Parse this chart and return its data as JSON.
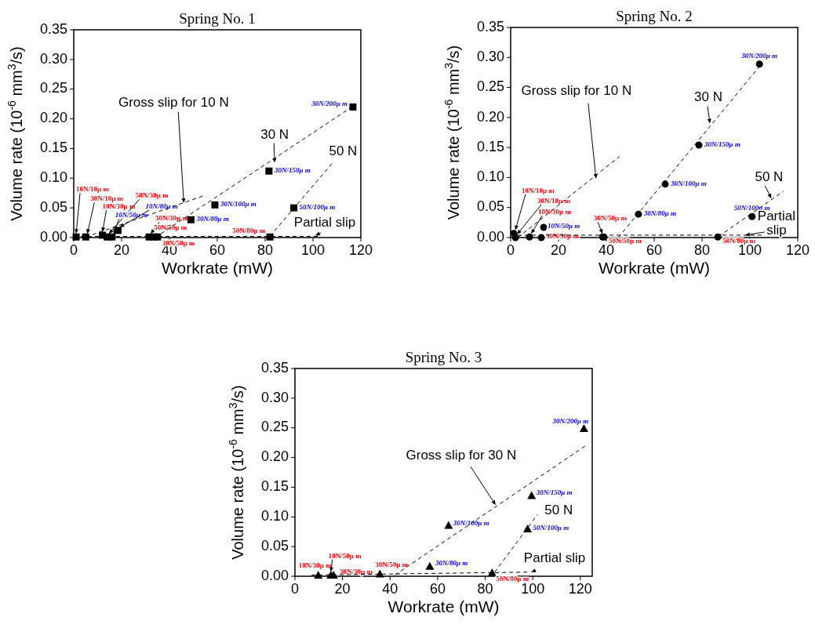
{
  "chart_data": [
    {
      "type": "scatter",
      "title": "Spring No. 1",
      "xlabel": "Workrate (mW)",
      "ylabel": "Volume rate (10$^{-6}$ mm$^{3}$/s)",
      "xlim": [
        0,
        120
      ],
      "xticks": [
        0,
        20,
        40,
        60,
        80,
        100,
        120
      ],
      "ylim": [
        0,
        0.35
      ],
      "yticks": [
        {
          "value": 0,
          "label": "0.00"
        },
        0.05,
        {
          "value": 0.1,
          "label": "0.10"
        },
        0.15,
        {
          "value": 0.2,
          "label": "0.20"
        },
        0.25,
        {
          "value": 0.3,
          "label": "0.30"
        },
        0.35
      ],
      "series": [
        {
          "marker": "square",
          "color": "#000000",
          "x": [
            1,
            5,
            12,
            14,
            31.5,
            33.5,
            35,
            82
          ],
          "values": [
            0.001,
            0.001,
            0.004,
            0.001,
            0.001,
            0.001,
            0.001,
            0.001
          ],
          "value_labels": [
            "10N/10μ m",
            "30N/10μ m",
            "10N/30μ m",
            "50N/30μ m",
            "30N/30μ m",
            "50N/50μ m",
            "30N/50μ m",
            "50N/80μ m"
          ]
        },
        {
          "marker": "square",
          "color": "#000000",
          "x": [
            16,
            18.5,
            49,
            59,
            81.6,
            116.7,
            92
          ],
          "values": [
            0.001,
            0.012,
            0.03,
            0.055,
            0.112,
            0.22,
            0.05
          ],
          "value_labels": [
            "10N/50μ m",
            "10N/80μ m",
            "30N/80μ m",
            "30N/100μ m",
            "30N/150μ m",
            "30N/200μ m",
            "50N/100μ m"
          ]
        },
        {
          "type": "line",
          "marker": "none",
          "line_style": "dashed",
          "color": "#000000",
          "x": [
            5,
            54
          ],
          "values": [
            0.001,
            0.07
          ]
        },
        {
          "type": "line",
          "marker": "none",
          "line_style": "dashed",
          "color": "#000000",
          "x": [
            34,
            117
          ],
          "values": [
            0,
            0.222
          ]
        },
        {
          "type": "line",
          "marker": "none",
          "line_style": "dashed",
          "color": "#000000",
          "x": [
            82,
            108
          ],
          "values": [
            0.002,
            0.125
          ]
        },
        {
          "type": "line",
          "marker": "none",
          "line_style": "dashed",
          "color": "#000000",
          "x": [
            0,
            102
          ],
          "values": [
            0.002,
            0.002
          ]
        }
      ],
      "annotations": [
        {
          "text": "Gross slip for 10 N",
          "x": 46,
          "y": 0.058
        },
        {
          "text": "30 N",
          "x": 84,
          "y": 0.126
        },
        {
          "text": "50 N",
          "x": 108,
          "y": 0.125
        },
        {
          "text": "Partial slip",
          "x": 101,
          "y": 0.003
        }
      ]
    },
    {
      "type": "scatter",
      "title": "Spring No. 2",
      "xlabel": "Workrate (mW)",
      "ylabel": "Volume rate (10$^{-6}$ mm$^{3}$/s)",
      "xlim": [
        0,
        120
      ],
      "xticks": [
        0,
        20,
        40,
        60,
        80,
        100,
        120
      ],
      "ylim": [
        0,
        0.35
      ],
      "yticks": [
        {
          "value": 0,
          "label": "0.00"
        },
        0.05,
        {
          "value": 0.1,
          "label": "0.10"
        },
        0.15,
        {
          "value": 0.2,
          "label": "0.20"
        },
        0.25,
        {
          "value": 0.3,
          "label": "0.30"
        },
        0.35
      ],
      "series": [
        {
          "marker": "circle",
          "color": "#000000",
          "x": [
            1.3,
            2,
            7.9,
            12.8,
            38.4,
            39,
            86.6
          ],
          "values": [
            0.007,
            0,
            0.001,
            0,
            0.001,
            0.001,
            0.001
          ],
          "value_labels": [
            "10N/10μ m",
            "30N/10μ m",
            "10N/30μ m",
            "30N/30μ m",
            "30N/50μ m",
            "50N/50μ m",
            "50N/80μ m"
          ]
        },
        {
          "marker": "circle",
          "color": "#000000",
          "x": [
            13.8,
            53.4,
            64.6,
            78.7,
            104,
            100.9
          ],
          "values": [
            0.017,
            0.039,
            0.089,
            0.154,
            0.289,
            0.035
          ],
          "value_labels": [
            "10N/50μ m",
            "30N/80μ m",
            "30N/100μ m",
            "30N/150μ m",
            "30N/200μ m",
            "50N/100μ m"
          ]
        },
        {
          "type": "line",
          "marker": "none",
          "line_style": "dashed",
          "color": "#000000",
          "x": [
            3,
            45.5
          ],
          "values": [
            0,
            0.135
          ]
        },
        {
          "type": "line",
          "marker": "none",
          "line_style": "dashed",
          "color": "#000000",
          "x": [
            45,
            104
          ],
          "values": [
            0,
            0.285
          ]
        },
        {
          "type": "line",
          "marker": "none",
          "line_style": "dashed",
          "color": "#000000",
          "x": [
            87,
            114
          ],
          "values": [
            0.002,
            0.077
          ]
        },
        {
          "type": "line",
          "marker": "none",
          "line_style": "dashed",
          "color": "#000000",
          "x": [
            0,
            106
          ],
          "values": [
            0.004,
            0.004
          ]
        }
      ],
      "annotations": [
        {
          "text": "Gross slip for 10 N",
          "x": 35.7,
          "y": 0.098
        },
        {
          "text": "30 N",
          "x": 83.3,
          "y": 0.19
        },
        {
          "text": "50 N",
          "x": 109,
          "y": 0.065
        },
        {
          "text": "Partial slip",
          "x": 98,
          "y": 0.004
        }
      ]
    },
    {
      "type": "scatter",
      "title": "Spring No. 3",
      "xlabel": "Workrate (mW)",
      "ylabel": "Volume rate (10$^{-6}$ mm$^{3}$/s)",
      "xlim": [
        0,
        125
      ],
      "xticks": [
        0,
        20,
        40,
        60,
        80,
        100,
        120
      ],
      "ylim": [
        0,
        0.35
      ],
      "yticks": [
        {
          "value": 0,
          "label": "0.00"
        },
        0.05,
        {
          "value": 0.1,
          "label": "0.10"
        },
        0.15,
        {
          "value": 0.2,
          "label": "0.20"
        },
        0.25,
        {
          "value": 0.3,
          "label": "0.30"
        },
        0.35
      ],
      "series": [
        {
          "marker": "triangle",
          "color": "#000000",
          "x": [
            9.8,
            15.1,
            16.2,
            35.7,
            82.9
          ],
          "values": [
            0.002,
            0.002,
            0.002,
            0.004,
            0.006
          ],
          "value_labels": [
            "10N/30μ m",
            "10N/50μ m",
            "30N/30μ m",
            "30N/50μ m",
            "50N/80μ m"
          ]
        },
        {
          "marker": "triangle",
          "color": "#000000",
          "x": [
            56.7,
            64.6,
            99.5,
            121.5,
            97.8
          ],
          "values": [
            0.017,
            0.086,
            0.136,
            0.249,
            0.08
          ],
          "value_labels": [
            "30N/80μ m",
            "30N/100μ m",
            "30N/150μ m",
            "30N/200μ m",
            "50N/100μ m"
          ]
        },
        {
          "type": "line",
          "marker": "none",
          "line_style": "dashed",
          "color": "#000000",
          "x": [
            42,
            123
          ],
          "values": [
            0.002,
            0.222
          ]
        },
        {
          "type": "line",
          "marker": "none",
          "line_style": "dashed",
          "color": "#000000",
          "x": [
            84,
            102
          ],
          "values": [
            0.007,
            0.104
          ]
        },
        {
          "type": "line",
          "marker": "none",
          "line_style": "dashed",
          "color": "#000000",
          "x": [
            7,
            99
          ],
          "values": [
            0.002,
            0.007
          ]
        }
      ],
      "annotations": [
        {
          "text": "Gross slip for 30 N",
          "x": 84.4,
          "y": 0.12
        },
        {
          "text": "50 N",
          "x": 102,
          "y": 0.104
        },
        {
          "text": "Partial slip",
          "x": 99.3,
          "y": 0.007
        }
      ]
    }
  ]
}
